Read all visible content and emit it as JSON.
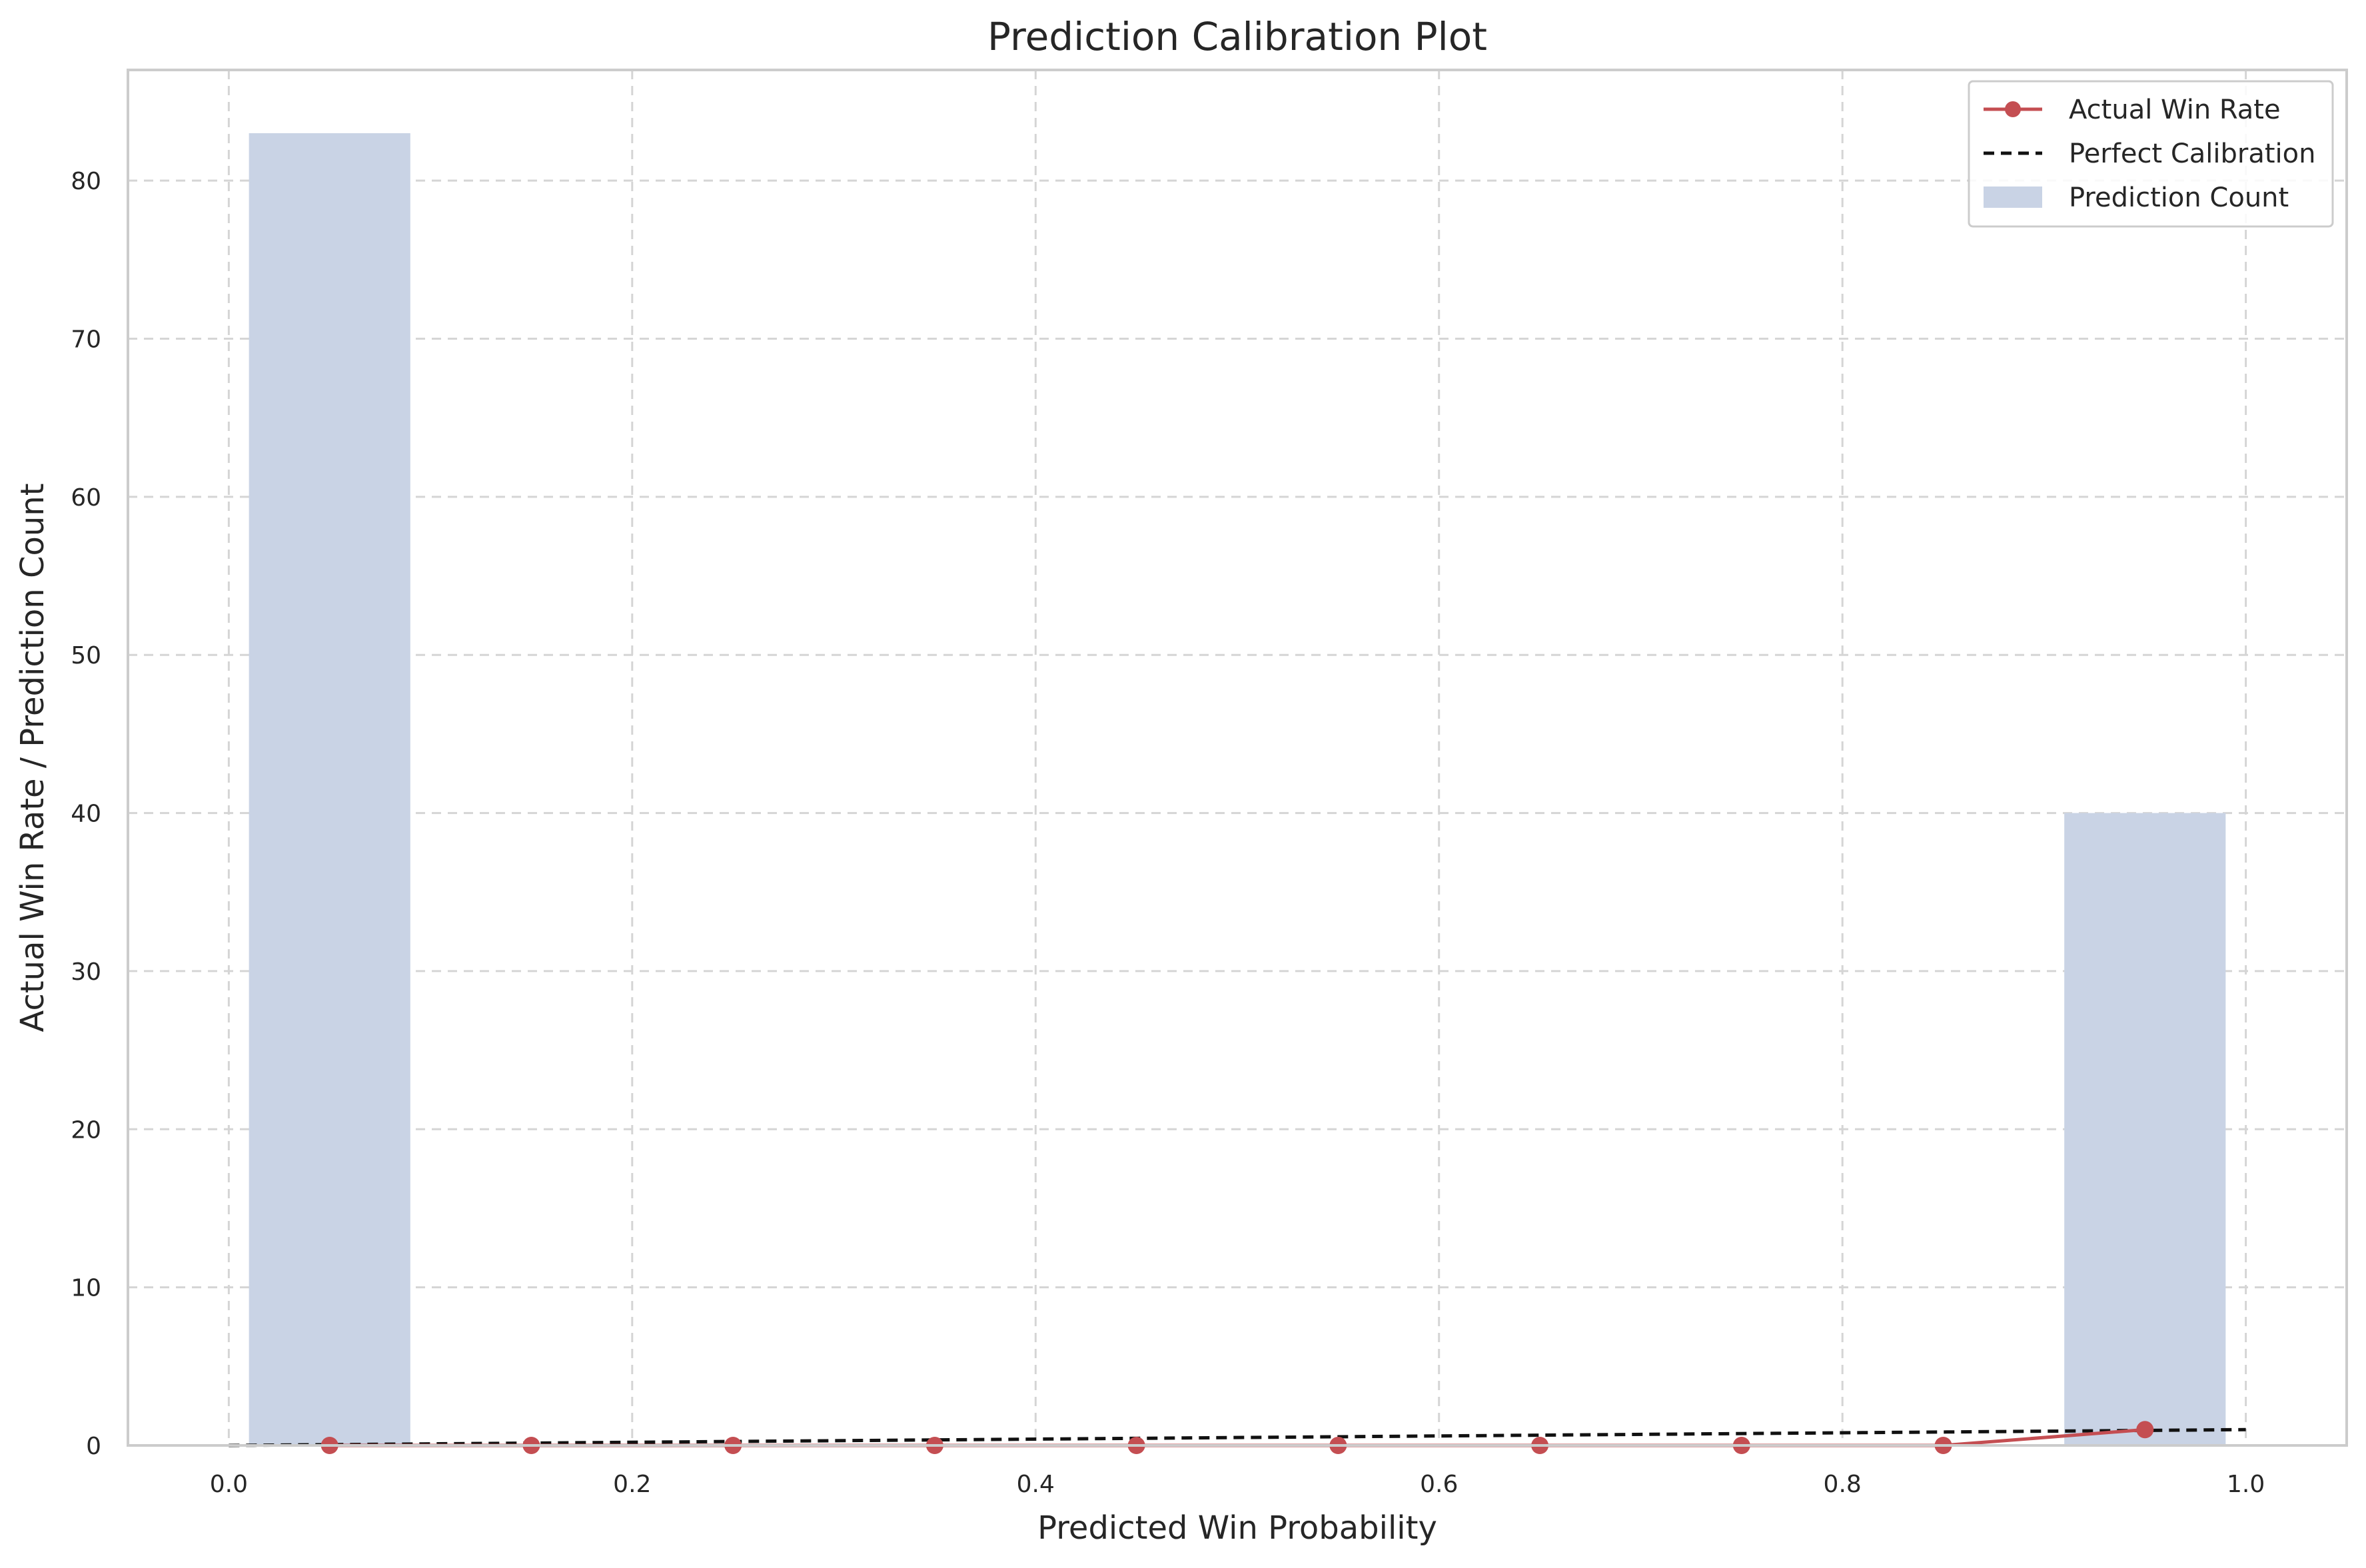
{
  "chart_data": {
    "type": "bar",
    "title": "Prediction Calibration Plot",
    "xlabel": "Predicted Win Probability",
    "ylabel": "Actual Win Rate / Prediction Count",
    "xlim": [
      -0.05,
      1.05
    ],
    "ylim": [
      0,
      87
    ],
    "xticks": [
      0.0,
      0.2,
      0.4,
      0.6,
      0.8,
      1.0
    ],
    "xtick_labels": [
      "0.0",
      "0.2",
      "0.4",
      "0.6",
      "0.8",
      "1.0"
    ],
    "yticks": [
      0,
      10,
      20,
      30,
      40,
      50,
      60,
      70,
      80
    ],
    "ytick_labels": [
      "0",
      "10",
      "20",
      "30",
      "40",
      "50",
      "60",
      "70",
      "80"
    ],
    "grid": true,
    "legend_position": "top-right",
    "bins": {
      "name": "Prediction Count",
      "color": "#c9d3e5",
      "width": 0.08,
      "centers": [
        0.05,
        0.15,
        0.25,
        0.35,
        0.45,
        0.55,
        0.65,
        0.75,
        0.85,
        0.95
      ],
      "counts": [
        83,
        0,
        0,
        0,
        0,
        0,
        0,
        0,
        0,
        40
      ]
    },
    "series": [
      {
        "name": "Actual Win Rate",
        "color": "#c44e52",
        "style": "line-marker",
        "x": [
          0.05,
          0.15,
          0.25,
          0.35,
          0.45,
          0.55,
          0.65,
          0.75,
          0.85,
          0.95
        ],
        "y": [
          0,
          0,
          0,
          0,
          0,
          0,
          0,
          0,
          0,
          1
        ]
      },
      {
        "name": "Perfect Calibration",
        "color": "#111111",
        "style": "dashed",
        "x": [
          0,
          1
        ],
        "y": [
          0,
          1
        ]
      }
    ],
    "legend": [
      "Actual Win Rate",
      "Perfect Calibration",
      "Prediction Count"
    ]
  }
}
